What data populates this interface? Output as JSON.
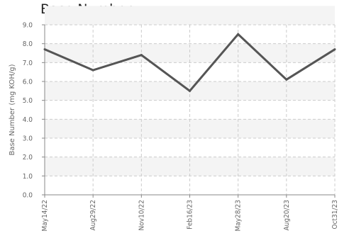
{
  "chart_data": {
    "type": "line",
    "title": "Base Number",
    "ylabel": "Base Number (mg KOH/g)",
    "xlabel": "",
    "categories": [
      "May14/22",
      "Aug29/22",
      "Nov10/22",
      "Feb16/23",
      "May28/23",
      "Aug20/23",
      "Oct31/23"
    ],
    "series": [
      {
        "values": [
          7.7,
          6.6,
          7.4,
          5.5,
          8.5,
          6.1,
          7.7
        ]
      }
    ],
    "ylim": [
      0,
      9
    ],
    "yticks": [
      "0.0",
      "1.0",
      "2.0",
      "3.0",
      "4.0",
      "5.0",
      "6.0",
      "7.0",
      "8.0",
      "9.0"
    ],
    "grid": true,
    "colors": {
      "line": "#555555",
      "band": "#f4f4f4",
      "grid": "#cccccc",
      "axis": "#888888"
    }
  }
}
